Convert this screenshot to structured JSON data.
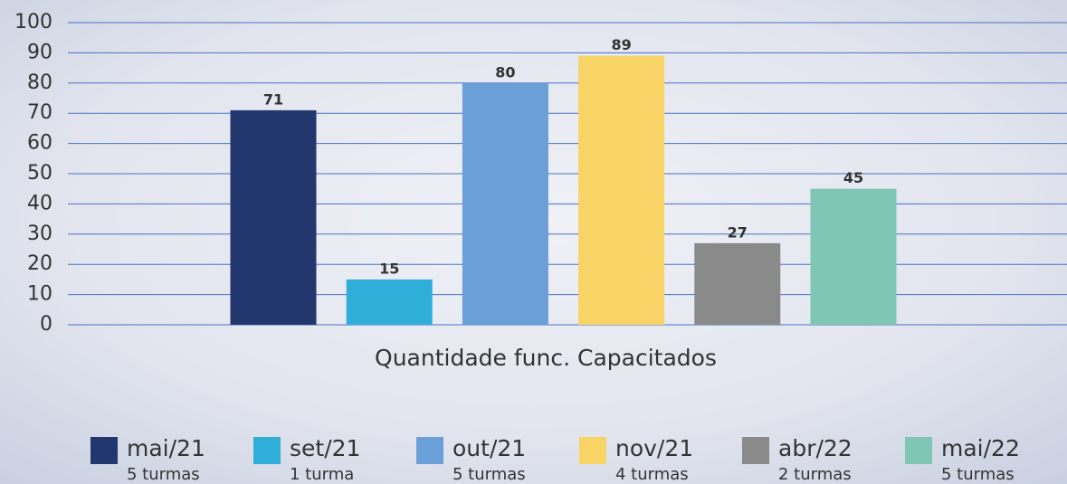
{
  "chart_data": {
    "type": "bar",
    "categories": [
      "Quantidade func. Capacitados"
    ],
    "series": [
      {
        "name": "mai/21",
        "description": "5 turmas",
        "color": "#23376f",
        "values": [
          71
        ]
      },
      {
        "name": "set/21",
        "description": "1 turma",
        "color": "#2eaed8",
        "values": [
          15
        ]
      },
      {
        "name": "out/21",
        "description": "5 turmas",
        "color": "#6a9fd8",
        "values": [
          80
        ]
      },
      {
        "name": "nov/21",
        "description": "4 turmas",
        "color": "#f8d466",
        "values": [
          89
        ]
      },
      {
        "name": "abr/22",
        "description": "2 turmas",
        "color": "#8a8a8a",
        "values": [
          27
        ]
      },
      {
        "name": "mai/22",
        "description": "5 turmas",
        "color": "#7fc6b4",
        "values": [
          45
        ]
      }
    ],
    "ylim": [
      0,
      100
    ],
    "yticks": [
      0,
      10,
      20,
      30,
      40,
      50,
      60,
      70,
      80,
      90,
      100
    ],
    "grid": true,
    "legend": "bottom"
  }
}
